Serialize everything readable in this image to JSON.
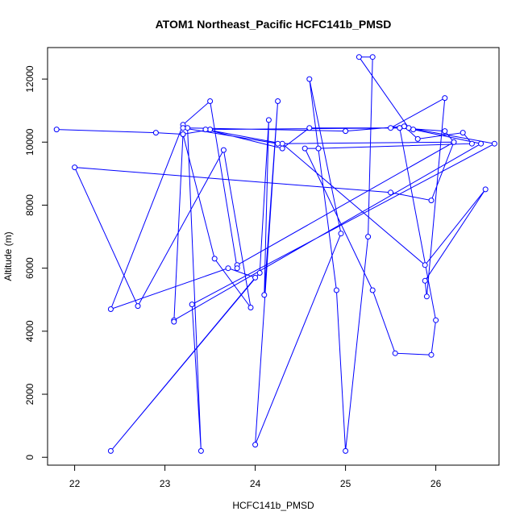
{
  "chart_data": {
    "type": "line",
    "title": "ATOM1 Northeast_Pacific HCFC141b_PMSD",
    "xlabel": "HCFC141b_PMSD",
    "ylabel": "Altitude (m)",
    "xlim": [
      21.7,
      26.7
    ],
    "ylim": [
      -250,
      13000
    ],
    "xticks": [
      22,
      23,
      24,
      25,
      26
    ],
    "yticks": [
      0,
      2000,
      4000,
      6000,
      8000,
      10000,
      12000
    ],
    "grid": false,
    "legend": "none",
    "marker": "open-circle",
    "line_color": "#0000ff",
    "series": [
      {
        "x": [
          21.8,
          22.9,
          23.2,
          23.5,
          25.6,
          26.1,
          26.2,
          23.8,
          23.8,
          23.5,
          23.2,
          22.4,
          23.7,
          24.0,
          22.4,
          24.05,
          24.15,
          24.1,
          24.25,
          24.0,
          24.95,
          24.6,
          24.9,
          25.0,
          25.25,
          25.3,
          25.15,
          25.7,
          26.65,
          23.3,
          23.4,
          23.25,
          25.0,
          25.65,
          25.8,
          26.3,
          26.4,
          24.7,
          24.55,
          25.3,
          25.55,
          25.95,
          26.0,
          25.6,
          25.5,
          26.1,
          25.9,
          25.88,
          26.55,
          25.88,
          24.3,
          23.45,
          24.3,
          24.6,
          25.6,
          25.75,
          26.5,
          23.1,
          23.1,
          23.2,
          23.55,
          23.95,
          23.65,
          22.7,
          22.0,
          25.5,
          25.95,
          26.2,
          24.25,
          23.2
        ],
        "y": [
          10400,
          10300,
          10250,
          10400,
          10450,
          10350,
          10000,
          6100,
          6000,
          11300,
          10550,
          4700,
          6000,
          5700,
          200,
          5850,
          10700,
          5150,
          11300,
          400,
          7100,
          12000,
          5300,
          200,
          7000,
          12700,
          12700,
          10450,
          9950,
          4850,
          200,
          10450,
          10350,
          10500,
          10100,
          10300,
          9950,
          9800,
          9800,
          5300,
          3300,
          3250,
          4350,
          10450,
          10450,
          11400,
          5100,
          5600,
          8500,
          6100,
          9950,
          10400,
          9800,
          10450,
          10450,
          10400,
          9950,
          4350,
          4300,
          10250,
          6300,
          4750,
          9750,
          4800,
          9200,
          8400,
          8150,
          10000,
          9950,
          10450
        ]
      }
    ]
  }
}
